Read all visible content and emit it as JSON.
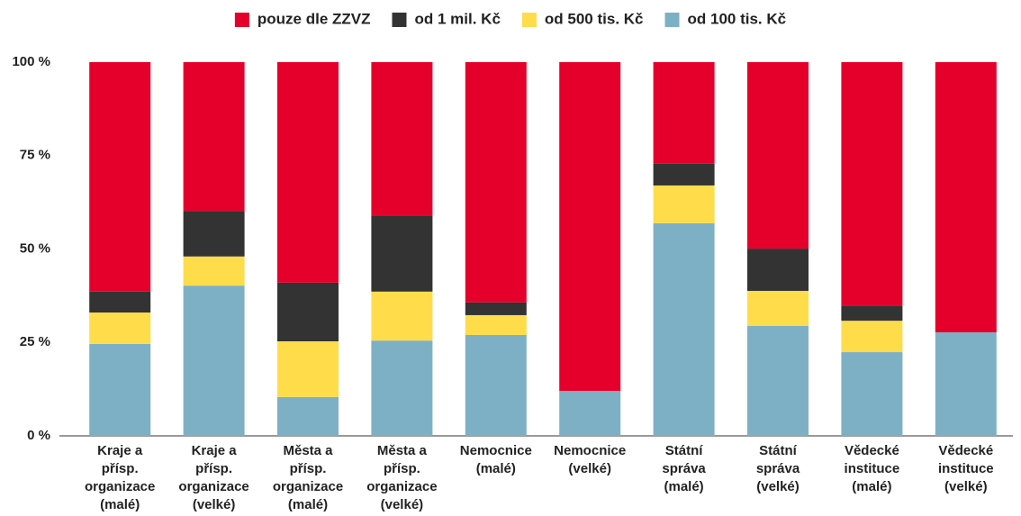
{
  "chart_data": {
    "type": "stacked_bar",
    "categories": [
      "Kraje a\npřísp.\norganizace\n(malé)",
      "Kraje a\npřísp.\norganizace\n(velké)",
      "Města a\npřísp.\norganizace\n(malé)",
      "Města a\npřísp.\norganizace\n(velké)",
      "Nemocnice\n(malé)",
      "Nemocnice\n(velké)",
      "Státní\nspráva\n(malé)",
      "Státní\nspráva\n(velké)",
      "Vědecké\ninstituce\n(malé)",
      "Vědecké\ninstituce\n(velké)"
    ],
    "series": [
      {
        "name": "pouze dle ZZVZ",
        "color": "#e4002b",
        "values": [
          61.4,
          39.8,
          59.0,
          41.0,
          64.3,
          88.0,
          27.2,
          49.9,
          65.1,
          72.3
        ]
      },
      {
        "name": "od 1 mil. Kč",
        "color": "#333333",
        "values": [
          5.6,
          12.2,
          15.7,
          20.4,
          3.4,
          0,
          5.8,
          11.3,
          4.1,
          0
        ]
      },
      {
        "name": "od 500 tis. Kč",
        "color": "#ffdc4a",
        "values": [
          8.4,
          7.8,
          14.9,
          13.1,
          5.3,
          0,
          10.1,
          9.4,
          8.4,
          0
        ]
      },
      {
        "name": "od 100 tis. Kč",
        "color": "#7eb0c5",
        "values": [
          24.6,
          40.2,
          10.4,
          25.5,
          27.0,
          12.0,
          56.9,
          29.4,
          22.4,
          27.7
        ]
      }
    ],
    "ylim": [
      0,
      100
    ],
    "yticks": [
      {
        "value": 0,
        "label": "0 %"
      },
      {
        "value": 25,
        "label": "25 %"
      },
      {
        "value": 50,
        "label": "50 %"
      },
      {
        "value": 75,
        "label": "75 %"
      },
      {
        "value": 100,
        "label": "100 %"
      }
    ],
    "legend": "top"
  }
}
